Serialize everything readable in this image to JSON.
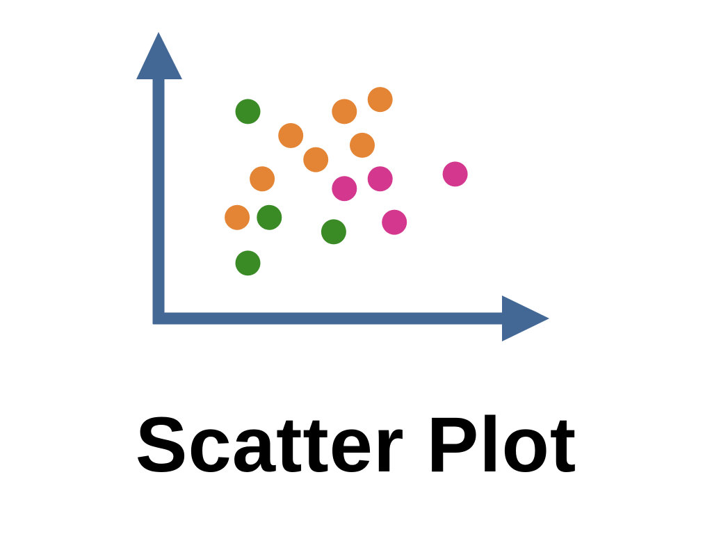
{
  "caption": "Scatter Plot",
  "colors": {
    "axis": "#436896",
    "green": "#3a8a26",
    "orange": "#e38535",
    "magenta": "#d3378e"
  },
  "chart_data": {
    "type": "scatter",
    "title": "",
    "xlabel": "",
    "ylabel": "",
    "xlim": [
      0,
      10
    ],
    "ylim": [
      0,
      10
    ],
    "grid": false,
    "series": [
      {
        "color": "#3a8a26",
        "points": [
          [
            2.5,
            8.6
          ],
          [
            3.1,
            4.2
          ],
          [
            4.9,
            3.6
          ],
          [
            2.5,
            2.3
          ]
        ]
      },
      {
        "color": "#e38535",
        "points": [
          [
            5.2,
            8.6
          ],
          [
            6.2,
            9.1
          ],
          [
            3.7,
            7.6
          ],
          [
            5.7,
            7.2
          ],
          [
            4.4,
            6.6
          ],
          [
            2.9,
            5.8
          ],
          [
            2.2,
            4.2
          ]
        ]
      },
      {
        "color": "#d3378e",
        "points": [
          [
            5.2,
            5.4
          ],
          [
            6.2,
            5.8
          ],
          [
            8.3,
            6.0
          ],
          [
            6.6,
            4.0
          ]
        ]
      }
    ]
  }
}
